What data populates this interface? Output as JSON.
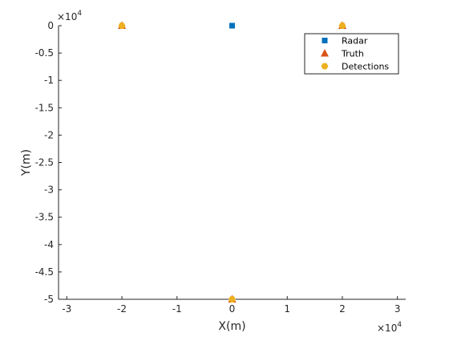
{
  "chart_data": {
    "type": "scatter",
    "xlabel": "X(m)",
    "ylabel": "Y(m)",
    "x_exponent_label": "×10",
    "x_exponent_power": "4",
    "y_exponent_label": "×10",
    "y_exponent_power": "4",
    "xlim": [
      -31500,
      31500
    ],
    "ylim": [
      -50000,
      0
    ],
    "x_ticks": [
      -30000,
      -20000,
      -10000,
      0,
      10000,
      20000,
      30000
    ],
    "x_tick_labels": [
      "-3",
      "-2",
      "-1",
      "0",
      "1",
      "2",
      "3"
    ],
    "y_ticks": [
      0,
      -5000,
      -10000,
      -15000,
      -20000,
      -25000,
      -30000,
      -35000,
      -40000,
      -45000,
      -50000
    ],
    "y_tick_labels": [
      "0",
      "-0.5",
      "-1",
      "-1.5",
      "-2",
      "-2.5",
      "-3",
      "-3.5",
      "-4",
      "-4.5",
      "-5"
    ],
    "grid": false,
    "legend_position": "top-right",
    "series": [
      {
        "name": "Radar",
        "marker": "square",
        "color": "#0072BD",
        "points": [
          [
            0,
            0
          ]
        ]
      },
      {
        "name": "Truth",
        "marker": "triangle",
        "color": "#D95319",
        "points": [
          [
            -20000,
            0
          ],
          [
            20000,
            0
          ],
          [
            0,
            -50000
          ]
        ]
      },
      {
        "name": "Detections",
        "marker": "hexagon",
        "color": "#EDB120",
        "points": [
          [
            -20000,
            0
          ],
          [
            20000,
            0
          ],
          [
            0,
            -50000
          ]
        ]
      }
    ]
  }
}
